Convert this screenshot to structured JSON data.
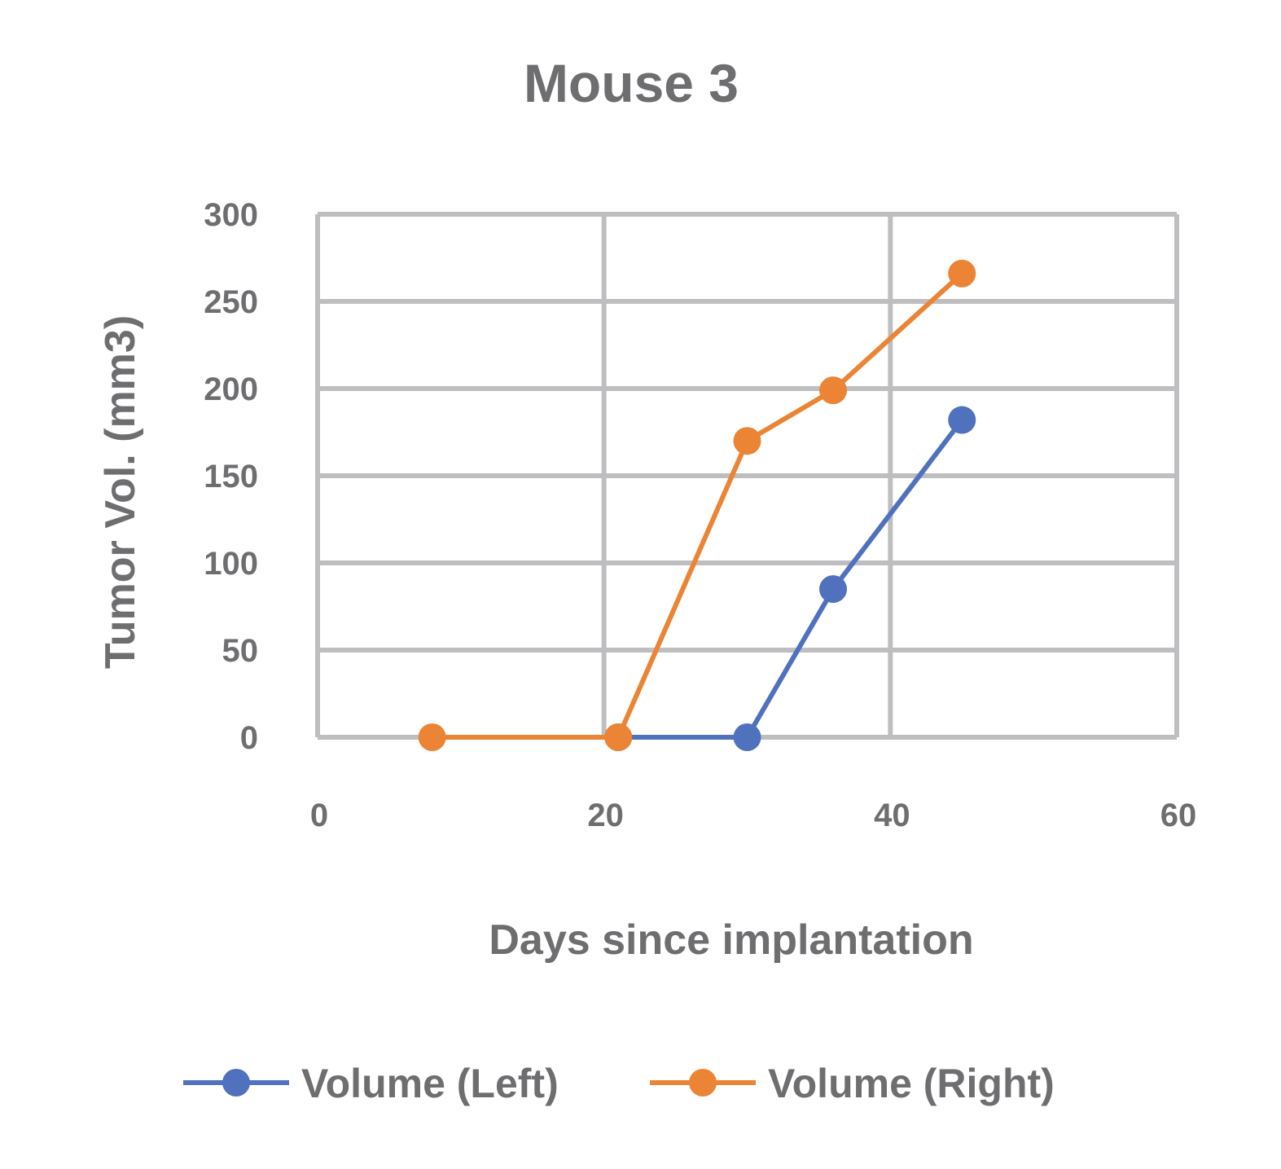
{
  "chart_data": {
    "type": "scatter",
    "title": "Mouse 3",
    "xlabel": "Days since implantation",
    "ylabel": "Tumor Vol. (mm3)",
    "xlim": [
      0,
      60
    ],
    "ylim": [
      0,
      300
    ],
    "x_ticks": [
      0,
      20,
      40,
      60
    ],
    "y_ticks": [
      0,
      50,
      100,
      150,
      200,
      250,
      300
    ],
    "x_tick_labels": [
      "0",
      "20",
      "40",
      "60"
    ],
    "y_tick_labels": [
      "0",
      "50",
      "100",
      "150",
      "200",
      "250",
      "300"
    ],
    "grid": true,
    "legend_position": "bottom",
    "series": [
      {
        "name": "Volume (Left)",
        "color": "#4F71BE",
        "x": [
          21,
          30,
          36,
          45
        ],
        "y": [
          0,
          0,
          85,
          182
        ]
      },
      {
        "name": "Volume (Right)",
        "color": "#EB8434",
        "x": [
          8,
          21,
          30,
          36,
          45
        ],
        "y": [
          0,
          0,
          170,
          199,
          266
        ]
      }
    ],
    "colors": {
      "text": "#6E6E70",
      "grid": "#BEBEC0",
      "background": "#FFFFFF"
    }
  }
}
